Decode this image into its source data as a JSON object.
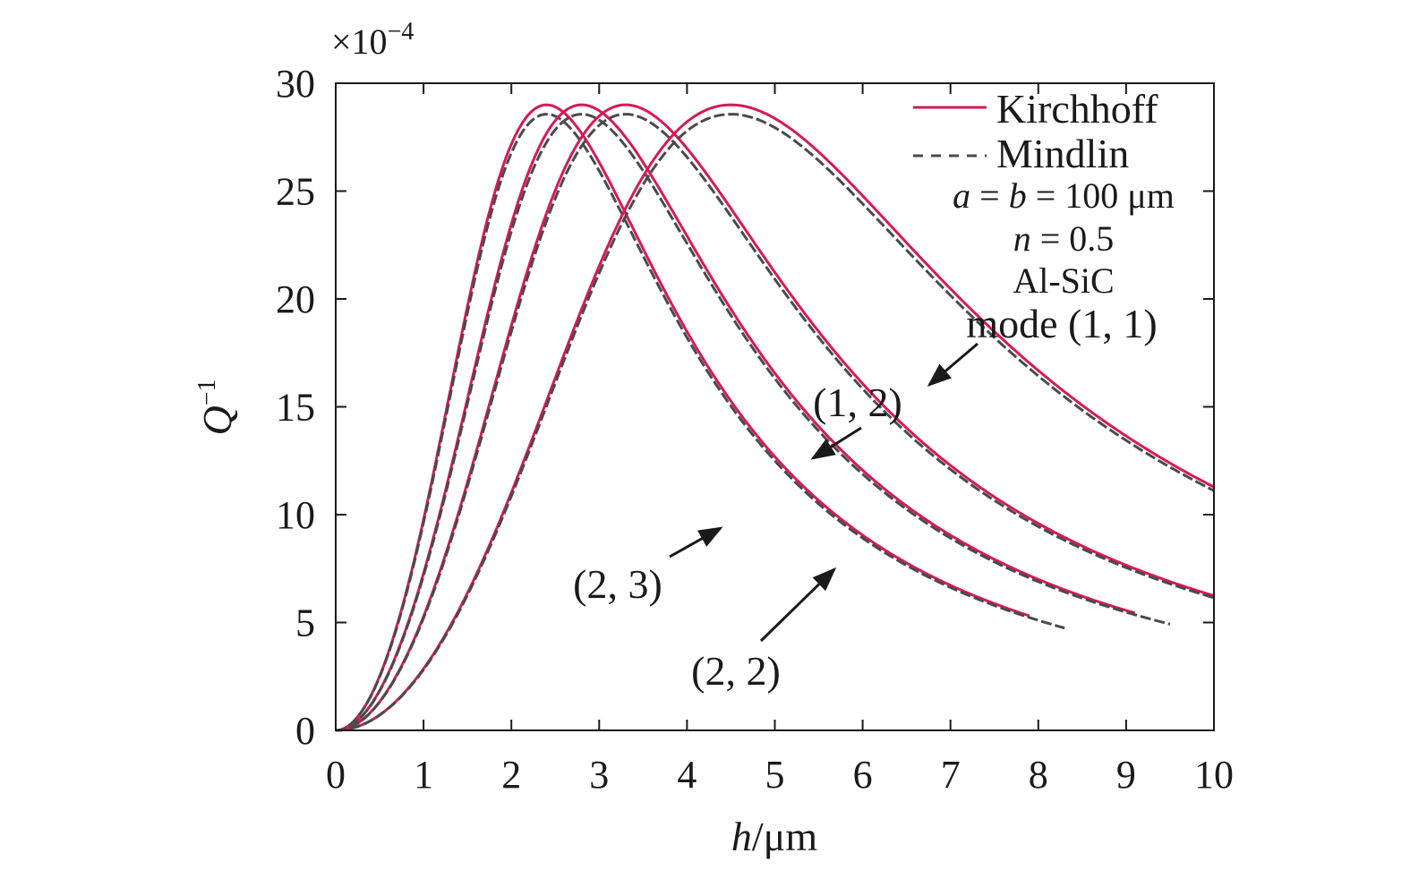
{
  "chart_data": {
    "type": "line",
    "xlabel_var": "h",
    "xlabel_unit": "/μm",
    "ylabel_main": "Q",
    "ylabel_sup": "−1",
    "yscale_base": "×10",
    "yscale_exp": "−4",
    "xlim": [
      0,
      10
    ],
    "ylim": [
      0,
      30
    ],
    "x_ticks": [
      "0",
      "1",
      "2",
      "3",
      "4",
      "5",
      "6",
      "7",
      "8",
      "9",
      "10"
    ],
    "y_ticks": [
      "0",
      "5",
      "10",
      "15",
      "20",
      "25",
      "30"
    ],
    "legend": {
      "placement": "top-right",
      "kirchhoff": "Kirchhoff",
      "mindlin": "Mindlin"
    },
    "params": {
      "ab_a": "a",
      "ab_eq1": " = ",
      "ab_b": "b",
      "ab_rest": " = 100 μm",
      "n_var": "n",
      "n_rest": " = 0.5",
      "material": "Al-SiC",
      "mode11": "mode (1, 1)"
    },
    "annotations": {
      "m12": "(1, 2)",
      "m23": "(2, 3)",
      "m22": "(2, 2)"
    },
    "colors": {
      "kirchhoff": "#d6195a",
      "mindlin": "#4a4a4a",
      "axis": "#1a1a1a"
    },
    "series": [
      {
        "mode": "(2, 3)",
        "peak_x": 2.4,
        "peak_y": 29.0,
        "x_end_kirchhoff": 7.9,
        "x_end_mindlin": 8.3
      },
      {
        "mode": "(2, 2)",
        "peak_x": 2.8,
        "peak_y": 29.0,
        "x_end_kirchhoff": 9.1,
        "x_end_mindlin": 9.5
      },
      {
        "mode": "(1, 2)",
        "peak_x": 3.3,
        "peak_y": 29.0,
        "x_end_kirchhoff": 10,
        "x_end_mindlin": 10
      },
      {
        "mode": "(1, 1)",
        "peak_x": 4.5,
        "peak_y": 29.0,
        "x_end_kirchhoff": 10,
        "x_end_mindlin": 10
      }
    ]
  }
}
